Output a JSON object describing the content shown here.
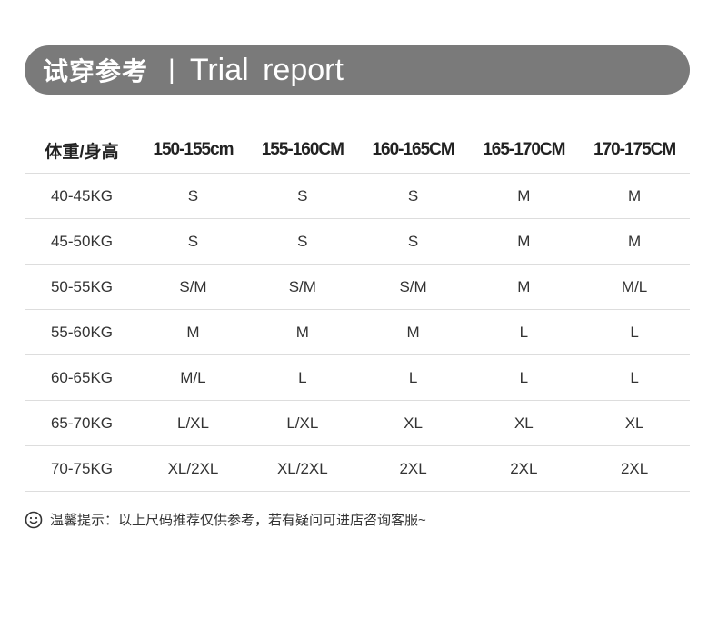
{
  "banner": {
    "title_cn": "试穿参考",
    "separator": "|",
    "title_en": "Trial report"
  },
  "table": {
    "headers": [
      "体重/身高",
      "150-155cm",
      "155-160CM",
      "160-165CM",
      "165-170CM",
      "170-175CM"
    ],
    "rows": [
      [
        "40-45KG",
        "S",
        "S",
        "S",
        "M",
        "M"
      ],
      [
        "45-50KG",
        "S",
        "S",
        "S",
        "M",
        "M"
      ],
      [
        "50-55KG",
        "S/M",
        "S/M",
        "S/M",
        "M",
        "M/L"
      ],
      [
        "55-60KG",
        "M",
        "M",
        "M",
        "L",
        "L"
      ],
      [
        "60-65KG",
        "M/L",
        "L",
        "L",
        "L",
        "L"
      ],
      [
        "65-70KG",
        "L/XL",
        "L/XL",
        "XL",
        "XL",
        "XL"
      ],
      [
        "70-75KG",
        "XL/2XL",
        "XL/2XL",
        "2XL",
        "2XL",
        "2XL"
      ]
    ]
  },
  "tip": {
    "icon": "smiley-icon",
    "text": "温馨提示：以上尺码推荐仅供参考，若有疑问可进店咨询客服~"
  }
}
